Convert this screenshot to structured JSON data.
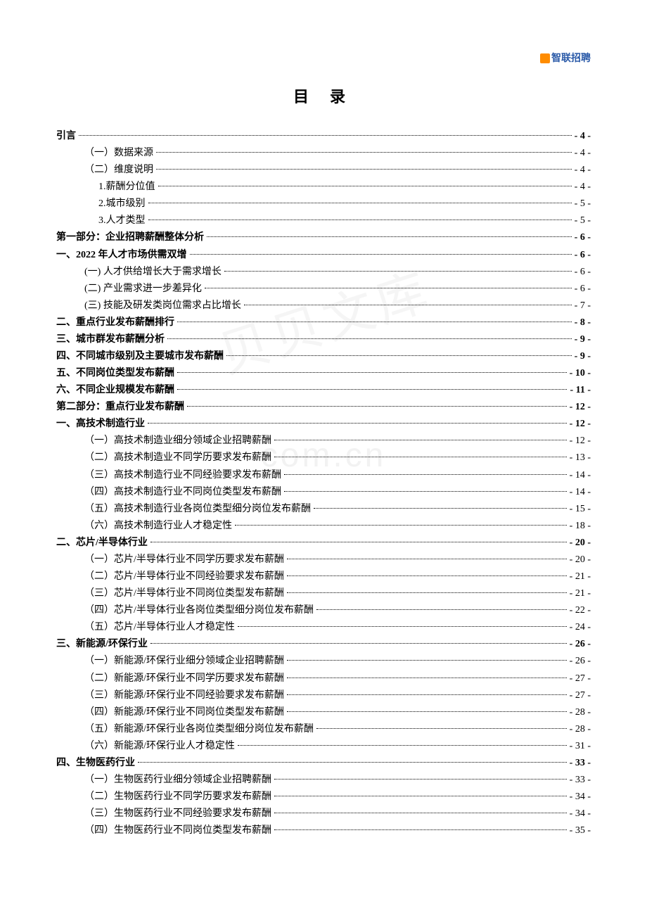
{
  "logo_text": "智联招聘",
  "title": "目 录",
  "watermark_chinese": "贝贝文库",
  "watermark_url": "com.cn",
  "toc": [
    {
      "label": "引言",
      "page": "- 4 -",
      "level": 0
    },
    {
      "label": "（一）数据来源",
      "page": "- 4 -",
      "level": 2
    },
    {
      "label": "（二）维度说明",
      "page": "- 4 -",
      "level": 2
    },
    {
      "label": "1.薪酬分位值",
      "page": "- 4 -",
      "level": 3
    },
    {
      "label": "2.城市级别",
      "page": "- 5 -",
      "level": 3
    },
    {
      "label": "3.人才类型",
      "page": "- 5 -",
      "level": 3
    },
    {
      "label": "第一部分：企业招聘薪酬整体分析",
      "page": "- 6 -",
      "level": 1
    },
    {
      "label": "一、2022 年人才市场供需双增",
      "page": "- 6 -",
      "level": 1
    },
    {
      "label": "(一) 人才供给增长大于需求增长",
      "page": "- 6 -",
      "level": 2
    },
    {
      "label": "(二) 产业需求进一步差异化",
      "page": "- 6 -",
      "level": 2
    },
    {
      "label": "(三) 技能及研发类岗位需求占比增长",
      "page": "- 7 -",
      "level": 2
    },
    {
      "label": "二、重点行业发布薪酬排行",
      "page": "- 8 -",
      "level": 1
    },
    {
      "label": "三、城市群发布薪酬分析",
      "page": "- 9 -",
      "level": 1
    },
    {
      "label": "四、不同城市级别及主要城市发布薪酬",
      "page": "- 9 -",
      "level": 1
    },
    {
      "label": "五、不同岗位类型发布薪酬",
      "page": "- 10 -",
      "level": 1
    },
    {
      "label": "六、不同企业规模发布薪酬",
      "page": "- 11 -",
      "level": 1
    },
    {
      "label": "第二部分：重点行业发布薪酬",
      "page": "- 12 -",
      "level": 1
    },
    {
      "label": "一、高技术制造行业",
      "page": "- 12 -",
      "level": 1
    },
    {
      "label": "（一）高技术制造业细分领域企业招聘薪酬",
      "page": "- 12 -",
      "level": 2
    },
    {
      "label": "（二）高技术制造业不同学历要求发布薪酬",
      "page": "- 13 -",
      "level": 2
    },
    {
      "label": "（三）高技术制造行业不同经验要求发布薪酬",
      "page": "- 14 -",
      "level": 2
    },
    {
      "label": "（四）高技术制造行业不同岗位类型发布薪酬",
      "page": "- 14 -",
      "level": 2
    },
    {
      "label": "（五）高技术制造行业各岗位类型细分岗位发布薪酬",
      "page": "- 15 -",
      "level": 2
    },
    {
      "label": "（六）高技术制造行业人才稳定性",
      "page": "- 18 -",
      "level": 2
    },
    {
      "label": "二、芯片/半导体行业",
      "page": "- 20 -",
      "level": 1
    },
    {
      "label": "（一）芯片/半导体行业不同学历要求发布薪酬",
      "page": "- 20 -",
      "level": 2
    },
    {
      "label": "（二）芯片/半导体行业不同经验要求发布薪酬",
      "page": "- 21 -",
      "level": 2
    },
    {
      "label": "（三）芯片/半导体行业不同岗位类型发布薪酬",
      "page": "- 21 -",
      "level": 2
    },
    {
      "label": "（四）芯片/半导体行业各岗位类型细分岗位发布薪酬",
      "page": "- 22 -",
      "level": 2
    },
    {
      "label": "（五）芯片/半导体行业人才稳定性",
      "page": "- 24 -",
      "level": 2
    },
    {
      "label": "三、新能源/环保行业",
      "page": "- 26 -",
      "level": 1
    },
    {
      "label": "（一）新能源/环保行业细分领域企业招聘薪酬",
      "page": "- 26 -",
      "level": 2
    },
    {
      "label": "（二）新能源/环保行业不同学历要求发布薪酬",
      "page": "- 27 -",
      "level": 2
    },
    {
      "label": "（三）新能源/环保行业不同经验要求发布薪酬",
      "page": "- 27 -",
      "level": 2
    },
    {
      "label": "（四）新能源/环保行业不同岗位类型发布薪酬",
      "page": "- 28 -",
      "level": 2
    },
    {
      "label": "（五）新能源/环保行业各岗位类型细分岗位发布薪酬",
      "page": "- 28 -",
      "level": 2
    },
    {
      "label": "（六）新能源/环保行业人才稳定性",
      "page": "- 31 -",
      "level": 2
    },
    {
      "label": "四、生物医药行业",
      "page": "- 33 -",
      "level": 1
    },
    {
      "label": "（一）生物医药行业细分领域企业招聘薪酬",
      "page": "- 33 -",
      "level": 2
    },
    {
      "label": "（二）生物医药行业不同学历要求发布薪酬",
      "page": "- 34 -",
      "level": 2
    },
    {
      "label": "（三）生物医药行业不同经验要求发布薪酬",
      "page": "- 34 -",
      "level": 2
    },
    {
      "label": "（四）生物医药行业不同岗位类型发布薪酬",
      "page": "- 35 -",
      "level": 2
    }
  ]
}
